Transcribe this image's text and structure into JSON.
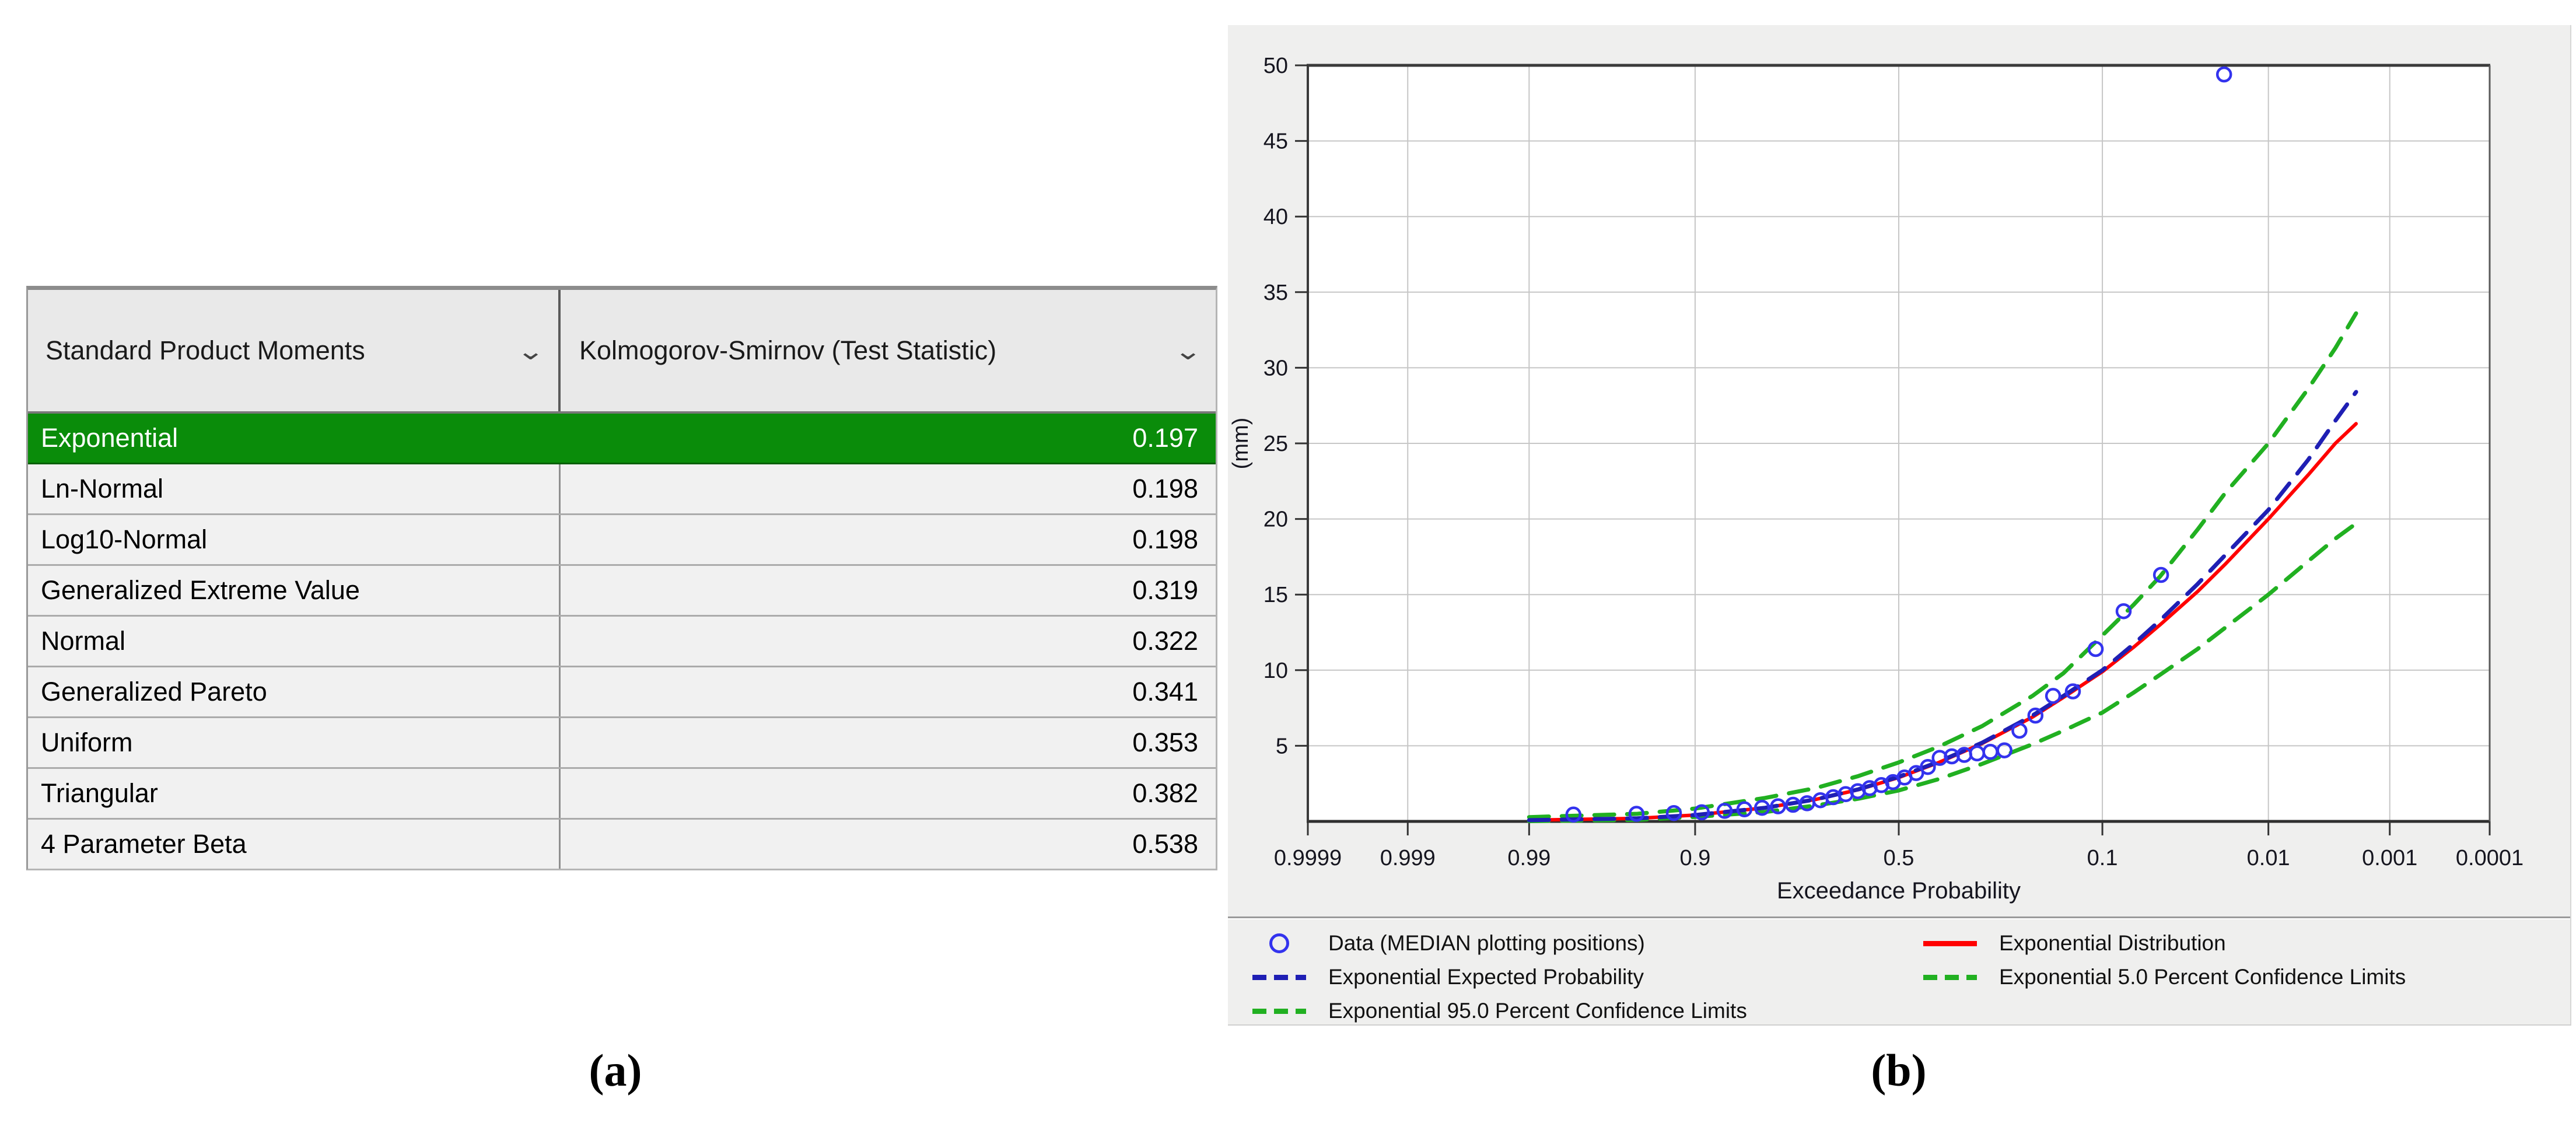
{
  "panel_a": {
    "caption": "(a)",
    "columns": [
      {
        "label": "Standard Product Moments"
      },
      {
        "label": "Kolmogorov-Smirnov (Test Statistic)"
      }
    ],
    "rows": [
      {
        "name": "Exponential",
        "value": "0.197",
        "selected": true
      },
      {
        "name": "Ln-Normal",
        "value": "0.198",
        "selected": false
      },
      {
        "name": "Log10-Normal",
        "value": "0.198",
        "selected": false
      },
      {
        "name": "Generalized Extreme Value",
        "value": "0.319",
        "selected": false
      },
      {
        "name": "Normal",
        "value": "0.322",
        "selected": false
      },
      {
        "name": "Generalized Pareto",
        "value": "0.341",
        "selected": false
      },
      {
        "name": "Uniform",
        "value": "0.353",
        "selected": false
      },
      {
        "name": "Triangular",
        "value": "0.382",
        "selected": false
      },
      {
        "name": "4 Parameter Beta",
        "value": "0.538",
        "selected": false
      }
    ],
    "selected_row_color": "#0a8c0a"
  },
  "panel_b": {
    "caption": "(b)"
  },
  "chart_data": {
    "type": "scatter",
    "title": "",
    "xlabel": "Exceedance Probability",
    "ylabel": "(mm)",
    "x_scale": "normal-probability-exceedance",
    "x_ticks": [
      0.9999,
      0.999,
      0.99,
      0.9,
      0.5,
      0.1,
      0.01,
      0.001,
      0.0001
    ],
    "x_tick_labels": [
      "0.9999",
      "0.999",
      "0.99",
      "0.9",
      "0.5",
      "0.1",
      "0.01",
      "0.001",
      "0.0001"
    ],
    "ylim": [
      0,
      50
    ],
    "y_ticks": [
      5,
      10,
      15,
      20,
      25,
      30,
      35,
      40,
      45,
      50
    ],
    "grid": true,
    "legend_position": "bottom",
    "colors": {
      "data": "#3333ee",
      "exponential": "#ff0000",
      "expected": "#1f1fb4",
      "confidence": "#21b021",
      "gridline": "#c6c6c6",
      "axis_dark": "#3a3a3a",
      "tick_text": "#15151f"
    },
    "series": [
      {
        "name": "Data (MEDIAN plotting positions)",
        "type": "scatter",
        "marker": "circle-open",
        "color": "#3333ee",
        "points": [
          [
            0.0203,
            49.4
          ],
          [
            0.0494,
            16.3
          ],
          [
            0.0785,
            13.9
          ],
          [
            0.1076,
            11.4
          ],
          [
            0.1366,
            8.6
          ],
          [
            0.1657,
            8.3
          ],
          [
            0.1948,
            7.0
          ],
          [
            0.2238,
            6.0
          ],
          [
            0.2529,
            4.7
          ],
          [
            0.282,
            4.6
          ],
          [
            0.311,
            4.5
          ],
          [
            0.3401,
            4.4
          ],
          [
            0.3692,
            4.3
          ],
          [
            0.3983,
            4.2
          ],
          [
            0.4273,
            3.6
          ],
          [
            0.4564,
            3.2
          ],
          [
            0.4855,
            2.9
          ],
          [
            0.5145,
            2.6
          ],
          [
            0.5436,
            2.4
          ],
          [
            0.5727,
            2.2
          ],
          [
            0.6017,
            2.0
          ],
          [
            0.6308,
            1.8
          ],
          [
            0.6599,
            1.6
          ],
          [
            0.689,
            1.4
          ],
          [
            0.718,
            1.2
          ],
          [
            0.7471,
            1.1
          ],
          [
            0.7762,
            1.0
          ],
          [
            0.8052,
            0.9
          ],
          [
            0.8343,
            0.8
          ],
          [
            0.8634,
            0.7
          ],
          [
            0.8925,
            0.6
          ],
          [
            0.9215,
            0.55
          ],
          [
            0.9506,
            0.5
          ],
          [
            0.9797,
            0.45
          ]
        ]
      },
      {
        "name": "Exponential Distribution",
        "type": "line",
        "style": "solid",
        "color": "#ff0000",
        "width": 6,
        "points": [
          [
            0.99,
            0.08
          ],
          [
            0.95,
            0.2
          ],
          [
            0.9,
            0.42
          ],
          [
            0.8,
            0.9
          ],
          [
            0.7,
            1.45
          ],
          [
            0.6,
            2.1
          ],
          [
            0.5,
            2.9
          ],
          [
            0.4,
            3.9
          ],
          [
            0.3,
            5.15
          ],
          [
            0.2,
            6.9
          ],
          [
            0.15,
            8.2
          ],
          [
            0.1,
            9.9
          ],
          [
            0.07,
            11.5
          ],
          [
            0.05,
            13.0
          ],
          [
            0.03,
            15.2
          ],
          [
            0.02,
            17.0
          ],
          [
            0.01,
            20.0
          ],
          [
            0.005,
            22.9
          ],
          [
            0.003,
            25.0
          ],
          [
            0.002,
            26.3
          ]
        ]
      },
      {
        "name": "Exponential Expected Probability",
        "type": "line",
        "style": "dashed",
        "color": "#1f1fb4",
        "width": 7,
        "points": [
          [
            0.99,
            0.08
          ],
          [
            0.95,
            0.2
          ],
          [
            0.9,
            0.42
          ],
          [
            0.8,
            0.9
          ],
          [
            0.7,
            1.45
          ],
          [
            0.6,
            2.12
          ],
          [
            0.5,
            2.95
          ],
          [
            0.4,
            3.95
          ],
          [
            0.3,
            5.2
          ],
          [
            0.2,
            7.0
          ],
          [
            0.15,
            8.3
          ],
          [
            0.1,
            10.0
          ],
          [
            0.07,
            11.7
          ],
          [
            0.05,
            13.3
          ],
          [
            0.03,
            15.7
          ],
          [
            0.02,
            17.6
          ],
          [
            0.01,
            20.6
          ],
          [
            0.005,
            23.9
          ],
          [
            0.003,
            26.5
          ],
          [
            0.002,
            28.4
          ]
        ]
      },
      {
        "name": "Exponential 95.0 Percent Confidence Limits",
        "type": "line",
        "style": "dashed",
        "color": "#21b021",
        "width": 7,
        "points": [
          [
            0.99,
            0.28
          ],
          [
            0.95,
            0.5
          ],
          [
            0.9,
            0.85
          ],
          [
            0.8,
            1.55
          ],
          [
            0.7,
            2.2
          ],
          [
            0.6,
            3.0
          ],
          [
            0.5,
            3.9
          ],
          [
            0.4,
            4.95
          ],
          [
            0.3,
            6.3
          ],
          [
            0.2,
            8.3
          ],
          [
            0.15,
            9.8
          ],
          [
            0.1,
            12.3
          ],
          [
            0.07,
            14.3
          ],
          [
            0.05,
            16.2
          ],
          [
            0.03,
            19.3
          ],
          [
            0.02,
            21.7
          ],
          [
            0.01,
            25.0
          ],
          [
            0.005,
            28.6
          ],
          [
            0.003,
            31.3
          ],
          [
            0.002,
            33.6
          ]
        ]
      },
      {
        "name": "Exponential 5.0 Percent Confidence Limits",
        "type": "line",
        "style": "dashed",
        "color": "#21b021",
        "width": 7,
        "points": [
          [
            0.99,
            0.02
          ],
          [
            0.95,
            0.1
          ],
          [
            0.9,
            0.3
          ],
          [
            0.8,
            0.62
          ],
          [
            0.7,
            1.05
          ],
          [
            0.6,
            1.5
          ],
          [
            0.5,
            2.05
          ],
          [
            0.4,
            2.8
          ],
          [
            0.3,
            3.8
          ],
          [
            0.2,
            5.1
          ],
          [
            0.15,
            6.0
          ],
          [
            0.1,
            7.2
          ],
          [
            0.07,
            8.5
          ],
          [
            0.05,
            9.7
          ],
          [
            0.03,
            11.4
          ],
          [
            0.02,
            12.8
          ],
          [
            0.01,
            15.0
          ],
          [
            0.005,
            17.2
          ],
          [
            0.003,
            18.7
          ],
          [
            0.002,
            19.7
          ]
        ]
      }
    ],
    "legend_entries": [
      {
        "label": "Data (MEDIAN plotting positions)",
        "marker": "circle",
        "color": "#3333ee"
      },
      {
        "label": "Exponential Distribution",
        "marker": "solid-line",
        "color": "#ff0000"
      },
      {
        "label": "Exponential Expected Probability",
        "marker": "dashed-line",
        "color": "#1f1fb4"
      },
      {
        "label": "Exponential 5.0 Percent Confidence Limits",
        "marker": "dashed-line",
        "color": "#21b021"
      },
      {
        "label": "Exponential 95.0 Percent Confidence Limits",
        "marker": "dashed-line",
        "color": "#21b021"
      }
    ]
  }
}
